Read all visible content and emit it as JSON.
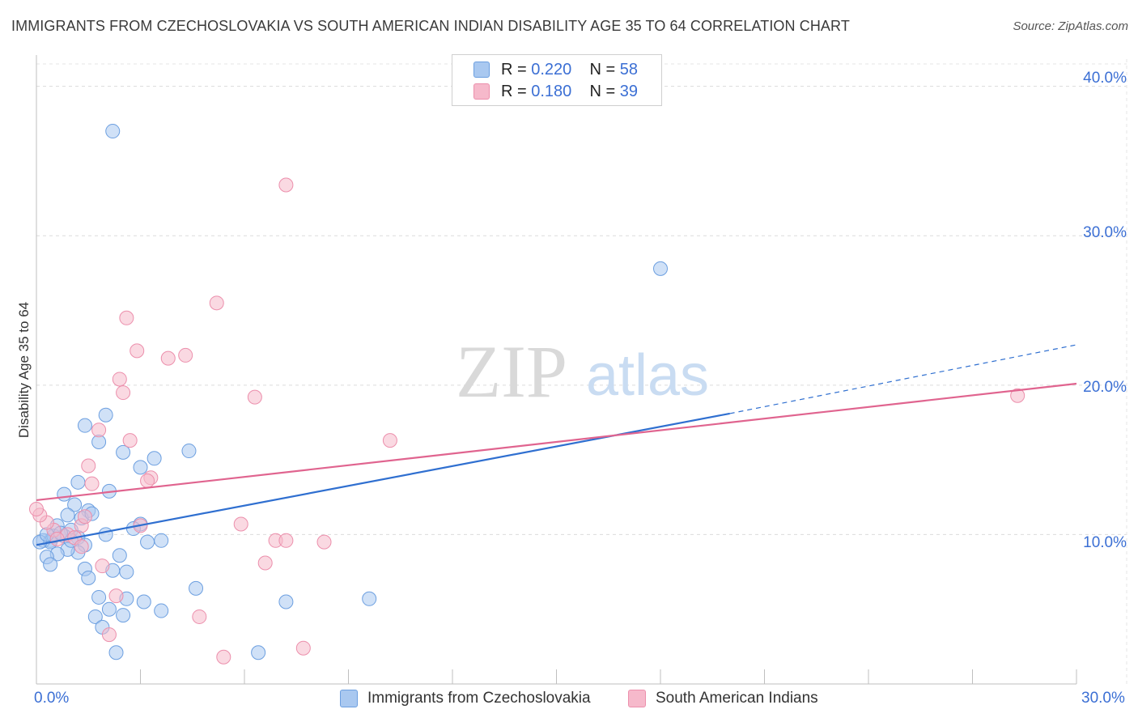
{
  "header": {
    "title": "IMMIGRANTS FROM CZECHOSLOVAKIA VS SOUTH AMERICAN INDIAN DISABILITY AGE 35 TO 64 CORRELATION CHART",
    "source": "Source: ZipAtlas.com"
  },
  "watermark": {
    "zip": "ZIP",
    "atlas": "atlas"
  },
  "legend_top": {
    "rows": [
      {
        "r_label": "R =",
        "r_value": "0.220",
        "n_label": "N =",
        "n_value": "58"
      },
      {
        "r_label": "R =",
        "r_value": "0.180",
        "n_label": "N =",
        "n_value": "39"
      }
    ]
  },
  "legend_bottom": {
    "series_a": "Immigrants from Czechoslovakia",
    "series_b": "South American Indians"
  },
  "axes": {
    "ylabel": "Disability Age 35 to 64",
    "y_ticks": [
      "10.0%",
      "20.0%",
      "30.0%",
      "40.0%"
    ],
    "x_left": "0.0%",
    "x_right": "30.0%"
  },
  "colors": {
    "blue_fill": "#a9c8f0",
    "blue_stroke": "#6c9fe0",
    "blue_line": "#2f6fd0",
    "pink_fill": "#f6b9cb",
    "pink_stroke": "#ec8fac",
    "pink_line": "#e0648f",
    "tick_text": "#3b6fd4"
  },
  "chart_data": {
    "type": "scatter",
    "title": "IMMIGRANTS FROM CZECHOSLOVAKIA VS SOUTH AMERICAN INDIAN DISABILITY AGE 35 TO 64 CORRELATION CHART",
    "xlabel": "",
    "ylabel": "Disability Age 35 to 64",
    "xlim": [
      0,
      30
    ],
    "ylim": [
      0,
      41.5
    ],
    "y_ticks": [
      10,
      20,
      30,
      40
    ],
    "series": [
      {
        "name": "Immigrants from Czechoslovakia",
        "color": "blue",
        "R": 0.22,
        "N": 58,
        "trend": {
          "x0": 0,
          "y0": 9.3,
          "x1": 20,
          "y1": 18.1,
          "dash_to_x": 30,
          "dash_to_y": 22.7
        },
        "points": [
          [
            2.2,
            37.0
          ],
          [
            18.0,
            27.8
          ],
          [
            1.4,
            17.3
          ],
          [
            2.0,
            18.0
          ],
          [
            1.8,
            16.2
          ],
          [
            2.5,
            15.5
          ],
          [
            4.4,
            15.6
          ],
          [
            3.4,
            15.1
          ],
          [
            3.0,
            14.5
          ],
          [
            1.2,
            13.5
          ],
          [
            2.1,
            12.9
          ],
          [
            0.8,
            12.7
          ],
          [
            1.1,
            12.0
          ],
          [
            1.5,
            11.6
          ],
          [
            1.3,
            11.1
          ],
          [
            0.9,
            11.3
          ],
          [
            0.6,
            10.6
          ],
          [
            1.0,
            10.3
          ],
          [
            3.0,
            10.7
          ],
          [
            2.0,
            10.0
          ],
          [
            0.4,
            9.6
          ],
          [
            0.8,
            9.9
          ],
          [
            1.2,
            9.8
          ],
          [
            0.2,
            9.6
          ],
          [
            0.4,
            9.5
          ],
          [
            0.1,
            9.5
          ],
          [
            3.6,
            9.6
          ],
          [
            3.2,
            9.5
          ],
          [
            1.4,
            9.3
          ],
          [
            1.2,
            8.8
          ],
          [
            0.9,
            9.0
          ],
          [
            0.6,
            8.7
          ],
          [
            0.3,
            8.5
          ],
          [
            2.4,
            8.6
          ],
          [
            0.4,
            8.0
          ],
          [
            1.4,
            7.7
          ],
          [
            2.2,
            7.6
          ],
          [
            2.6,
            7.5
          ],
          [
            1.5,
            7.1
          ],
          [
            4.6,
            6.4
          ],
          [
            1.8,
            5.8
          ],
          [
            2.6,
            5.7
          ],
          [
            3.1,
            5.5
          ],
          [
            7.2,
            5.5
          ],
          [
            9.6,
            5.7
          ],
          [
            2.1,
            5.0
          ],
          [
            3.6,
            4.9
          ],
          [
            1.7,
            4.5
          ],
          [
            2.5,
            4.6
          ],
          [
            1.9,
            3.8
          ],
          [
            2.3,
            2.1
          ],
          [
            6.4,
            2.1
          ],
          [
            0.5,
            9.9
          ],
          [
            1.0,
            9.6
          ],
          [
            0.7,
            10.1
          ],
          [
            1.6,
            11.4
          ],
          [
            0.3,
            10.0
          ],
          [
            2.8,
            10.4
          ]
        ]
      },
      {
        "name": "South American Indians",
        "color": "pink",
        "R": 0.18,
        "N": 39,
        "trend": {
          "x0": 0,
          "y0": 12.3,
          "x1": 30,
          "y1": 20.1
        },
        "points": [
          [
            7.2,
            33.4
          ],
          [
            5.2,
            25.5
          ],
          [
            2.6,
            24.5
          ],
          [
            2.9,
            22.3
          ],
          [
            4.3,
            22.0
          ],
          [
            3.8,
            21.8
          ],
          [
            2.4,
            20.4
          ],
          [
            2.5,
            19.5
          ],
          [
            6.3,
            19.2
          ],
          [
            28.3,
            19.3
          ],
          [
            1.8,
            17.0
          ],
          [
            2.7,
            16.3
          ],
          [
            10.2,
            16.3
          ],
          [
            1.5,
            14.6
          ],
          [
            3.3,
            13.8
          ],
          [
            3.2,
            13.6
          ],
          [
            1.6,
            13.4
          ],
          [
            1.3,
            10.6
          ],
          [
            1.4,
            11.2
          ],
          [
            3.0,
            10.6
          ],
          [
            5.9,
            10.7
          ],
          [
            0.5,
            10.3
          ],
          [
            0.9,
            10.0
          ],
          [
            1.1,
            9.8
          ],
          [
            0.3,
            10.8
          ],
          [
            0.1,
            11.3
          ],
          [
            0.0,
            11.7
          ],
          [
            6.9,
            9.6
          ],
          [
            7.2,
            9.6
          ],
          [
            8.3,
            9.5
          ],
          [
            1.3,
            9.2
          ],
          [
            6.6,
            8.1
          ],
          [
            1.9,
            7.9
          ],
          [
            2.3,
            5.9
          ],
          [
            4.7,
            4.5
          ],
          [
            2.1,
            3.3
          ],
          [
            5.4,
            1.8
          ],
          [
            7.7,
            2.4
          ],
          [
            0.6,
            9.7
          ]
        ]
      }
    ]
  }
}
